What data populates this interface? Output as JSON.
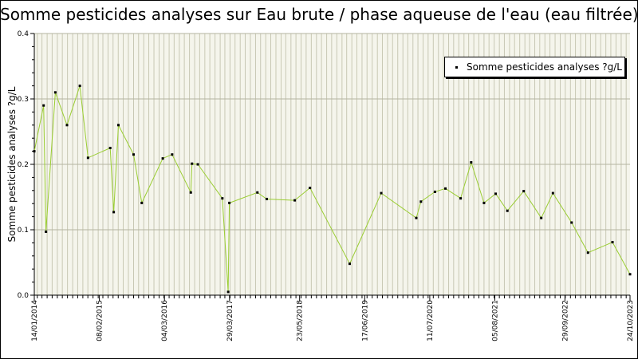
{
  "chart_data": {
    "type": "line",
    "title": "Somme pesticides analyses sur Eau brute / phase aqueuse de l'eau (eau filtrée)",
    "xlabel": "",
    "ylabel": "Somme pesticides analyses ?g/L",
    "ylim": [
      0,
      0.4
    ],
    "yticks": [
      "0.0",
      "0.1",
      "0.2",
      "0.3",
      "0.4"
    ],
    "xlim": [
      "2014-01-14",
      "2023-10-24"
    ],
    "xticks": [
      "14/01/2014",
      "08/02/2015",
      "04/03/2016",
      "29/03/2017",
      "23/05/2018",
      "17/06/2019",
      "11/07/2020",
      "05/08/2021",
      "29/09/2022",
      "24/10/2023"
    ],
    "grid": true,
    "legend_position": "top-right",
    "series": [
      {
        "name": "Somme pesticides analyses ?g/L",
        "color": "#9acd32",
        "points": [
          [
            "2014-01-14",
            0.22
          ],
          [
            "2014-03-11",
            0.29
          ],
          [
            "2014-03-25",
            0.097
          ],
          [
            "2014-05-20",
            0.31
          ],
          [
            "2014-07-29",
            0.26
          ],
          [
            "2014-10-14",
            0.32
          ],
          [
            "2014-12-02",
            0.21
          ],
          [
            "2015-04-14",
            0.225
          ],
          [
            "2015-05-05",
            0.127
          ],
          [
            "2015-06-02",
            0.26
          ],
          [
            "2015-09-01",
            0.215
          ],
          [
            "2015-10-20",
            0.141
          ],
          [
            "2016-02-23",
            0.209
          ],
          [
            "2016-04-19",
            0.215
          ],
          [
            "2016-08-09",
            0.157
          ],
          [
            "2016-08-16",
            0.201
          ],
          [
            "2016-09-20",
            0.2
          ],
          [
            "2017-02-14",
            0.148
          ],
          [
            "2017-03-21",
            0.005
          ],
          [
            "2017-03-28",
            0.141
          ],
          [
            "2017-09-12",
            0.157
          ],
          [
            "2017-11-07",
            0.147
          ],
          [
            "2018-04-24",
            0.145
          ],
          [
            "2018-07-24",
            0.164
          ],
          [
            "2019-03-19",
            0.048
          ],
          [
            "2019-09-24",
            0.156
          ],
          [
            "2020-04-21",
            0.118
          ],
          [
            "2020-05-19",
            0.143
          ],
          [
            "2020-08-11",
            0.158
          ],
          [
            "2020-10-13",
            0.163
          ],
          [
            "2021-01-12",
            0.148
          ],
          [
            "2021-03-16",
            0.203
          ],
          [
            "2021-06-01",
            0.141
          ],
          [
            "2021-08-10",
            0.155
          ],
          [
            "2021-10-19",
            0.129
          ],
          [
            "2022-01-25",
            0.159
          ],
          [
            "2022-05-10",
            0.118
          ],
          [
            "2022-07-19",
            0.156
          ],
          [
            "2022-11-08",
            0.111
          ],
          [
            "2023-02-14",
            0.065
          ],
          [
            "2023-07-11",
            0.081
          ],
          [
            "2023-10-24",
            0.032
          ]
        ]
      }
    ]
  }
}
